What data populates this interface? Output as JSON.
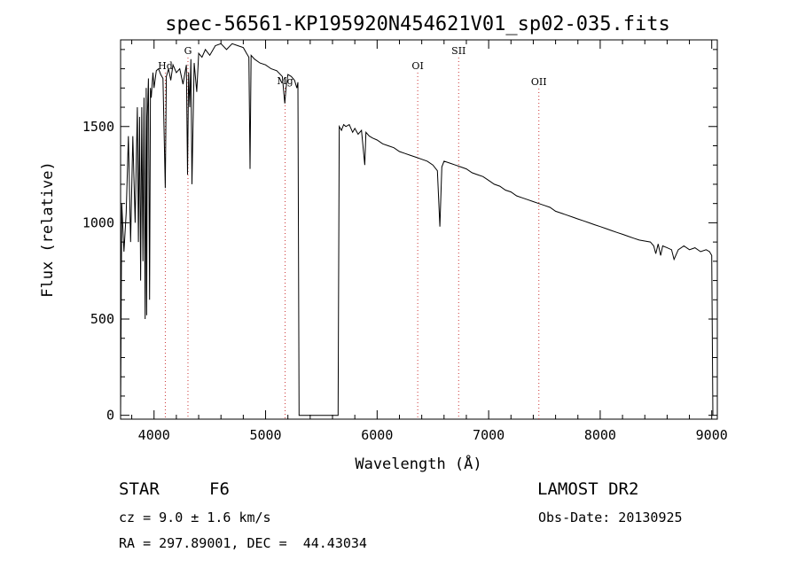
{
  "chart_data": {
    "type": "line",
    "title": "spec-56561-KP195920N454621V01_sp02-035.fits",
    "xlabel": "Wavelength (Å)",
    "ylabel": "Flux (relative)",
    "xlim": [
      3700,
      9050
    ],
    "ylim": [
      -20,
      1950
    ],
    "x_ticks": [
      4000,
      5000,
      6000,
      7000,
      8000,
      9000
    ],
    "y_ticks": [
      0,
      500,
      1000,
      1500
    ],
    "grid": false,
    "series": [
      {
        "x": [
          3700,
          3710,
          3730,
          3750,
          3770,
          3790,
          3810,
          3830,
          3850,
          3860,
          3870,
          3880,
          3890,
          3900,
          3910,
          3920,
          3930,
          3934,
          3940,
          3950,
          3960,
          3968,
          3975,
          3990,
          4000,
          4020,
          4040,
          4060,
          4080,
          4101,
          4110,
          4130,
          4150,
          4170,
          4200,
          4230,
          4260,
          4290,
          4300,
          4310,
          4320,
          4330,
          4340,
          4360,
          4383,
          4400,
          4430,
          4460,
          4500,
          4550,
          4600,
          4650,
          4700,
          4750,
          4800,
          4830,
          4850,
          4861,
          4870,
          4900,
          4950,
          5000,
          5050,
          5100,
          5150,
          5172,
          5183,
          5200,
          5230,
          5260,
          5280,
          5290,
          5300,
          5650,
          5660,
          5670,
          5680,
          5700,
          5720,
          5750,
          5780,
          5800,
          5830,
          5860,
          5889,
          5900,
          5930,
          5960,
          6000,
          6050,
          6100,
          6150,
          6200,
          6250,
          6300,
          6350,
          6400,
          6450,
          6500,
          6540,
          6563,
          6580,
          6600,
          6650,
          6700,
          6750,
          6800,
          6850,
          6900,
          6950,
          7000,
          7050,
          7100,
          7150,
          7200,
          7250,
          7300,
          7350,
          7400,
          7450,
          7500,
          7550,
          7600,
          7650,
          7700,
          7750,
          7800,
          7850,
          7900,
          7950,
          8000,
          8050,
          8100,
          8150,
          8200,
          8250,
          8300,
          8350,
          8400,
          8450,
          8480,
          8498,
          8520,
          8542,
          8560,
          8600,
          8640,
          8662,
          8700,
          8750,
          8800,
          8850,
          8900,
          8950,
          8980,
          9000,
          9010
        ],
        "y": [
          0,
          1100,
          850,
          1050,
          1450,
          900,
          1450,
          1000,
          1600,
          900,
          1550,
          700,
          1600,
          800,
          1650,
          500,
          1700,
          520,
          1550,
          1750,
          600,
          1700,
          1650,
          1780,
          1700,
          1790,
          1800,
          1770,
          1750,
          1180,
          1760,
          1800,
          1740,
          1820,
          1780,
          1800,
          1720,
          1820,
          1250,
          1780,
          1600,
          1850,
          1200,
          1830,
          1680,
          1880,
          1860,
          1900,
          1870,
          1920,
          1930,
          1900,
          1930,
          1920,
          1910,
          1880,
          1860,
          1280,
          1870,
          1850,
          1830,
          1820,
          1800,
          1790,
          1760,
          1620,
          1700,
          1770,
          1760,
          1740,
          1700,
          1730,
          0,
          0,
          1500,
          1490,
          1480,
          1510,
          1500,
          1510,
          1470,
          1490,
          1460,
          1480,
          1300,
          1470,
          1450,
          1440,
          1430,
          1410,
          1400,
          1390,
          1370,
          1360,
          1350,
          1340,
          1330,
          1320,
          1300,
          1270,
          980,
          1290,
          1320,
          1310,
          1300,
          1290,
          1280,
          1260,
          1250,
          1240,
          1220,
          1200,
          1190,
          1170,
          1160,
          1140,
          1130,
          1120,
          1110,
          1100,
          1090,
          1080,
          1060,
          1050,
          1040,
          1030,
          1020,
          1010,
          1000,
          990,
          980,
          970,
          960,
          950,
          940,
          930,
          920,
          910,
          905,
          900,
          880,
          840,
          890,
          830,
          880,
          870,
          860,
          810,
          860,
          880,
          860,
          870,
          850,
          860,
          850,
          830,
          0
        ]
      }
    ],
    "line_annotations": [
      {
        "label": "Hd",
        "x": 4101
      },
      {
        "label": "G",
        "x": 4304
      },
      {
        "label": "Mg",
        "x": 5175
      },
      {
        "label": "OI",
        "x": 6364
      },
      {
        "label": "SII",
        "x": 6731
      },
      {
        "label": "OII",
        "x": 7450
      }
    ]
  },
  "info": {
    "class_label": "STAR",
    "subclass": "F6",
    "survey": "LAMOST DR2",
    "cz": "cz = 9.0 ± 1.6 km/s",
    "obs_date": "Obs-Date: 20130925",
    "coords": "RA = 297.89001, DEC =  44.43034"
  }
}
